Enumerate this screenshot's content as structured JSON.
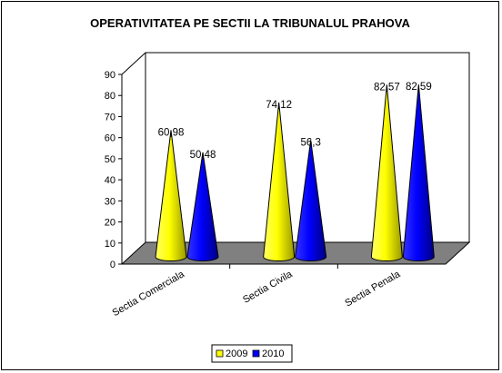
{
  "chart_data": {
    "type": "bar",
    "style": "3d-cone",
    "title": "OPERATIVITATEA PE SECTII LA TRIBUNALUL PRAHOVA",
    "categories": [
      "Sectia Comerciala",
      "Sectia Civila",
      "Sectia Penala"
    ],
    "series": [
      {
        "name": "2009",
        "values": [
          60.98,
          74.12,
          82.57
        ],
        "labels": [
          "60,98",
          "74,12",
          "82,57"
        ],
        "color": "#ffff00"
      },
      {
        "name": "2010",
        "values": [
          50.48,
          56.3,
          82.59
        ],
        "labels": [
          "50,48",
          "56,3",
          "82,59"
        ],
        "color": "#0000ff"
      }
    ],
    "ylim": [
      0,
      90
    ],
    "yticks": [
      "0",
      "10",
      "20",
      "30",
      "40",
      "50",
      "60",
      "70",
      "80",
      "90"
    ],
    "xlabel": "",
    "ylabel": "",
    "legend": "bottom",
    "grid": false
  }
}
